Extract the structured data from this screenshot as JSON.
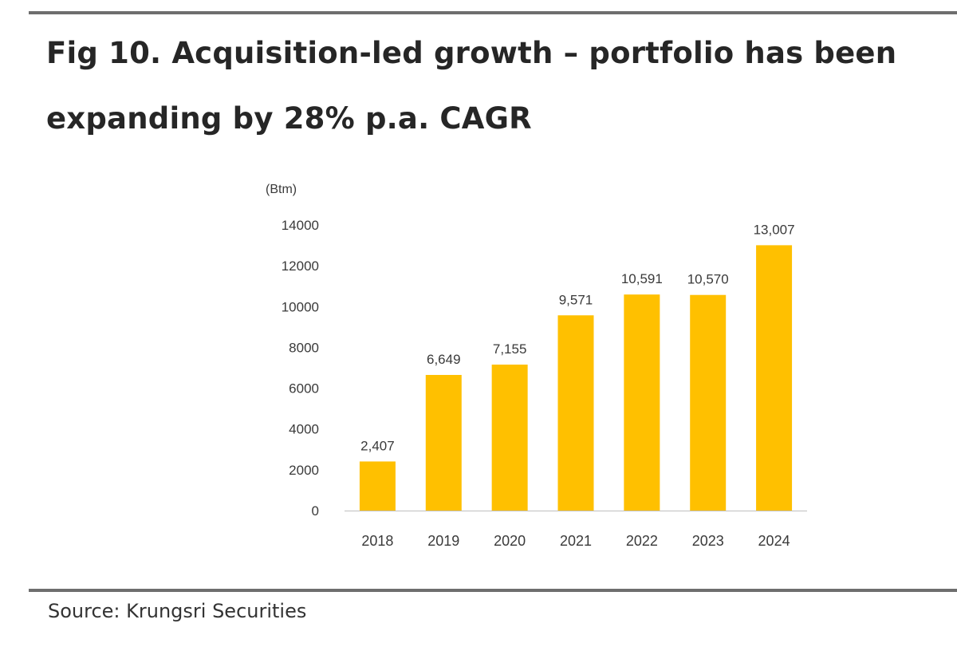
{
  "figure": {
    "title": "Fig 10. Acquisition-led growth – portfolio has been expanding by 28% p.a. CAGR",
    "source": "Source: Krungsri Securities"
  },
  "colors": {
    "bar": "#FFC000",
    "rule": "#6e6e6e",
    "axis_text": "#3a3a3a"
  },
  "chart_data": {
    "type": "bar",
    "unit_label": "(Btm)",
    "categories": [
      "2018",
      "2019",
      "2020",
      "2021",
      "2022",
      "2023",
      "2024"
    ],
    "values": [
      2407,
      6649,
      7155,
      9571,
      10591,
      10570,
      13007
    ],
    "data_labels": [
      "2,407",
      "6,649",
      "7,155",
      "9,571",
      "10,591",
      "10,570",
      "13,007"
    ],
    "ylim": [
      0,
      14000
    ],
    "yticks": [
      0,
      2000,
      4000,
      6000,
      8000,
      10000,
      12000,
      14000
    ],
    "grid": false,
    "legend": "none"
  }
}
